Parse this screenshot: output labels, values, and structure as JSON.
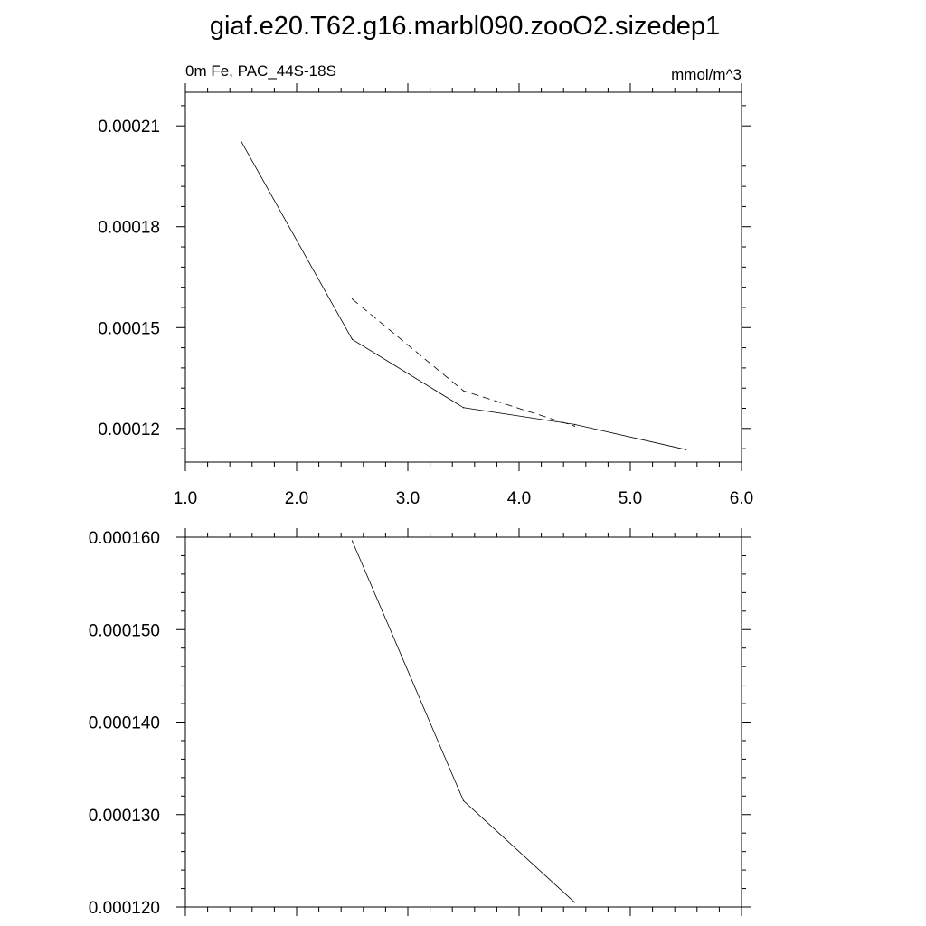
{
  "figure": {
    "title": "giaf.e20.T62.g16.marbl090.zooO2.sizedep1"
  },
  "chart_data": [
    {
      "type": "line",
      "subtitle_left": "0m Fe, PAC_44S-18S",
      "subtitle_right": "mmol/m^3",
      "xlim": [
        1.0,
        6.0
      ],
      "ylim": [
        0.00011,
        0.00022
      ],
      "x_ticks": [
        1.0,
        2.0,
        3.0,
        4.0,
        5.0,
        6.0
      ],
      "x_tick_labels": [
        "1.0",
        "2.0",
        "3.0",
        "4.0",
        "5.0",
        "6.0"
      ],
      "y_ticks": [
        0.00012,
        0.00015,
        0.00018,
        0.00021
      ],
      "y_tick_labels": [
        "0.00012",
        "0.00015",
        "0.00018",
        "0.00021"
      ],
      "grid": false,
      "series": [
        {
          "style": "solid",
          "x": [
            1.5,
            2.5,
            3.5,
            4.5,
            5.5
          ],
          "y": [
            0.0002055,
            0.0001465,
            0.0001262,
            0.0001212,
            0.0001137
          ]
        },
        {
          "style": "dashed",
          "x": [
            2.5,
            3.5,
            4.5
          ],
          "y": [
            0.0001585,
            0.0001312,
            0.0001207
          ]
        }
      ]
    },
    {
      "type": "line",
      "xlim": [
        1.0,
        6.0
      ],
      "ylim": [
        0.00012,
        0.00016
      ],
      "x_ticks": [
        1.0,
        2.0,
        3.0,
        4.0,
        5.0,
        6.0
      ],
      "y_ticks": [
        0.00012,
        0.00013,
        0.00014,
        0.00015,
        0.00016
      ],
      "y_tick_labels": [
        "0.000120",
        "0.000130",
        "0.000140",
        "0.000150",
        "0.000160"
      ],
      "grid": false,
      "series": [
        {
          "style": "solid",
          "x": [
            2.5,
            3.5,
            4.5
          ],
          "y": [
            0.0001596,
            0.0001315,
            0.0001205
          ]
        }
      ]
    }
  ]
}
